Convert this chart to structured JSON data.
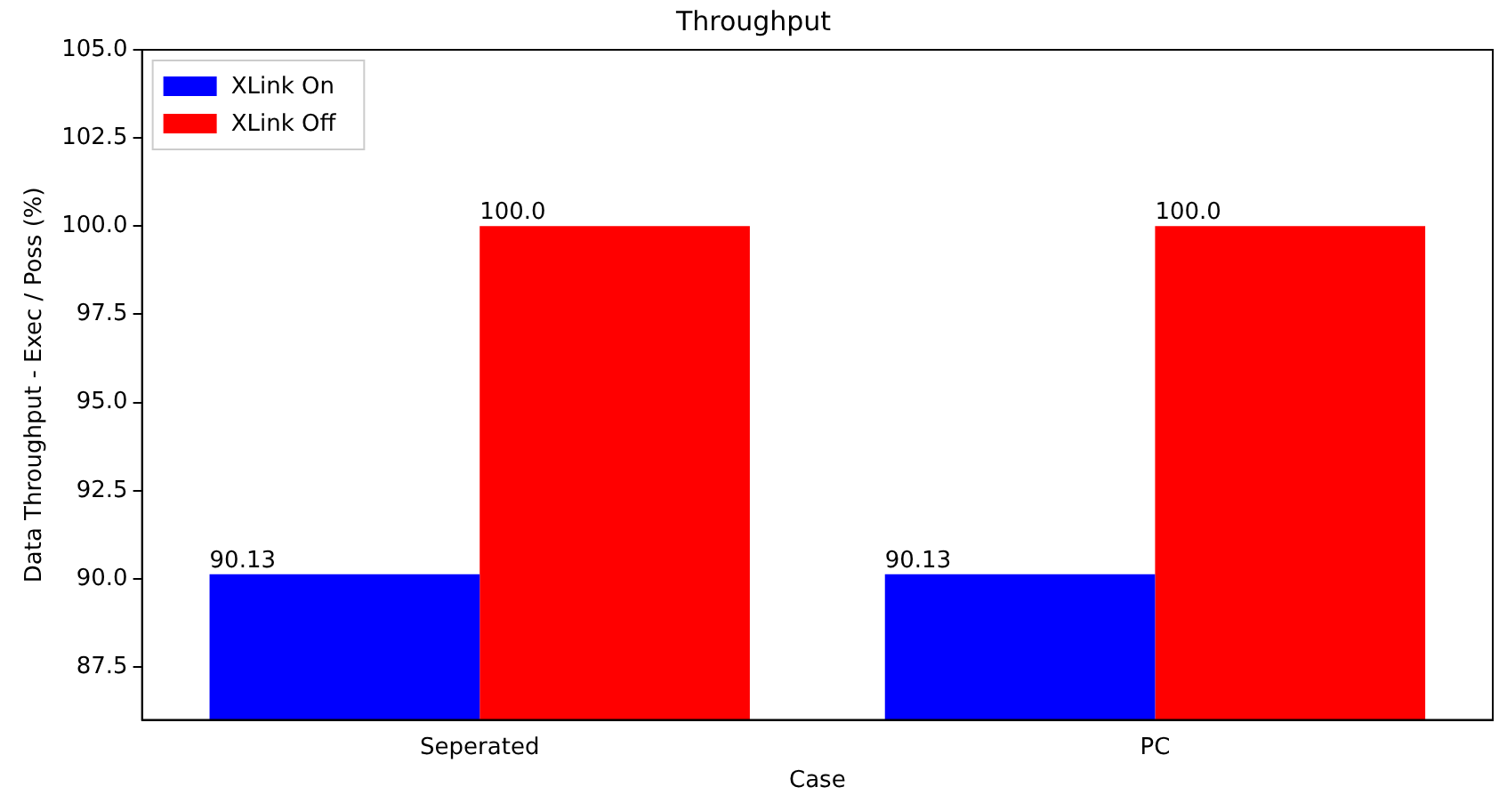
{
  "chart_data": {
    "type": "bar",
    "title": "Throughput",
    "xlabel": "Case",
    "ylabel": "Data Throughput - Exec / Poss (%)",
    "categories": [
      "Seperated",
      "PC"
    ],
    "series": [
      {
        "name": "XLink On",
        "color": "#0000ff",
        "values": [
          90.13,
          90.13
        ],
        "value_labels": [
          "90.13",
          "90.13"
        ]
      },
      {
        "name": "XLink Off",
        "color": "#ff0000",
        "values": [
          100.0,
          100.0
        ],
        "value_labels": [
          "100.0",
          "100.0"
        ]
      }
    ],
    "ylim": [
      86.0,
      105.0
    ],
    "yticks": [
      {
        "value": 87.5,
        "label": "87.5"
      },
      {
        "value": 90,
        "label": "90.0"
      },
      {
        "value": 92.5,
        "label": "92.5"
      },
      {
        "value": 95,
        "label": "95.0"
      },
      {
        "value": 97.5,
        "label": "97.5"
      },
      {
        "value": 100,
        "label": "100.0"
      },
      {
        "value": 102.5,
        "label": "102.5"
      },
      {
        "value": 105,
        "label": "105.0"
      }
    ],
    "grid": false,
    "legend": "top left"
  }
}
